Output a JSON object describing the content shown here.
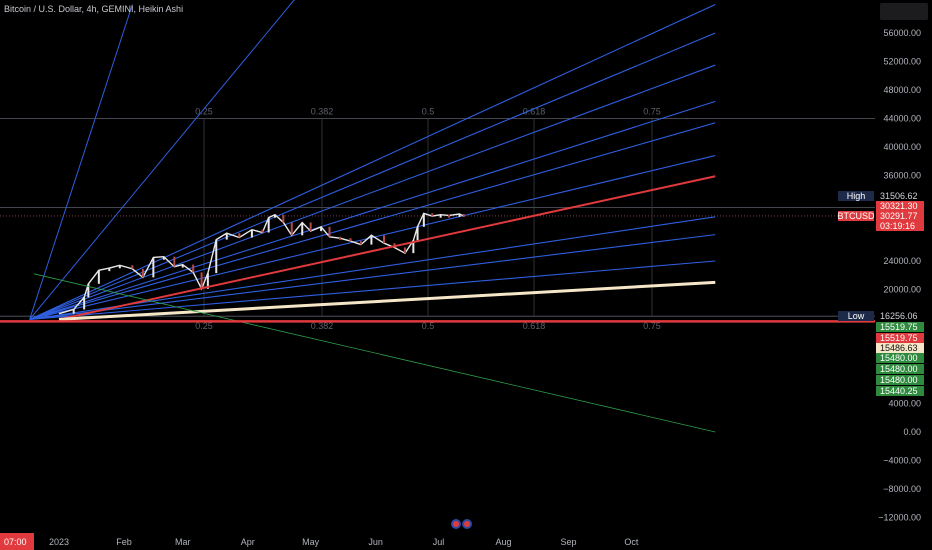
{
  "header": {
    "title": "Bitcoin / U.S. Dollar, 4h, GEMINI, Heikin Ashi"
  },
  "colors": {
    "background": "#000000",
    "fan_line": "#2f5fe0",
    "red_line": "#e03a3e",
    "cream_line": "#f5e6c8",
    "green_line": "#2e9e4a",
    "hline": "#5a5d66",
    "candle_up": "#e8e8e8",
    "candle_down": "#b84a4a",
    "tag_red": "#e03a3e",
    "tag_green": "#2e8b3e",
    "tag_navy": "#1e2a4a"
  },
  "chart_data": {
    "type": "line",
    "title": "Bitcoin / U.S. Dollar, 4h, GEMINI, Heikin Ashi",
    "ylim": [
      -14000,
      60000
    ],
    "y_ticks": [
      "56000.00",
      "52000.00",
      "48000.00",
      "44000.00",
      "40000.00",
      "36000.00",
      "24000.00",
      "20000.00",
      "4000.00",
      "0.00",
      "−4000.00",
      "−8000.00",
      "−12000.00"
    ],
    "x_ticks": [
      "2023",
      "Feb",
      "Mar",
      "Apr",
      "May",
      "Jun",
      "Jul",
      "Aug",
      "Sep",
      "Oct"
    ],
    "time_badge": "07:00",
    "fib_levels": [
      "0.25",
      "0.382",
      "0.5",
      "0.618",
      "0.75"
    ],
    "horizontal_levels": [
      44000,
      31506.62,
      30321.3,
      16256.06,
      15519.75
    ],
    "price_series": {
      "name": "BTCUSD",
      "x": [
        "2023-01-01",
        "2023-01-08",
        "2023-01-13",
        "2023-01-15",
        "2023-01-20",
        "2023-01-25",
        "2023-01-30",
        "2023-02-05",
        "2023-02-10",
        "2023-02-15",
        "2023-02-20",
        "2023-02-25",
        "2023-03-01",
        "2023-03-06",
        "2023-03-10",
        "2023-03-13",
        "2023-03-17",
        "2023-03-22",
        "2023-03-28",
        "2023-04-03",
        "2023-04-08",
        "2023-04-11",
        "2023-04-14",
        "2023-04-18",
        "2023-04-22",
        "2023-04-27",
        "2023-05-01",
        "2023-05-06",
        "2023-05-10",
        "2023-05-15",
        "2023-05-20",
        "2023-05-25",
        "2023-05-30",
        "2023-06-05",
        "2023-06-10",
        "2023-06-15",
        "2023-06-19",
        "2023-06-21",
        "2023-06-24",
        "2023-06-28",
        "2023-07-02",
        "2023-07-06",
        "2023-07-11",
        "2023-07-13"
      ],
      "y": [
        16600,
        17200,
        18900,
        20800,
        22700,
        23000,
        23400,
        22900,
        21700,
        24500,
        24600,
        23200,
        23500,
        22400,
        20100,
        22300,
        27000,
        27900,
        27300,
        28400,
        28000,
        30100,
        30500,
        29400,
        27600,
        29400,
        28200,
        28800,
        27400,
        27200,
        26800,
        26300,
        27600,
        26500,
        25900,
        25100,
        26900,
        28800,
        30700,
        30300,
        30500,
        30400,
        30600,
        30300
      ]
    },
    "fan_lines": [
      {
        "x2": "2023-04-27",
        "y2": 62000
      },
      {
        "x2": "2023-11-10",
        "y2": 60000
      },
      {
        "x2": "2023-11-10",
        "y2": 56000
      },
      {
        "x2": "2023-11-10",
        "y2": 51500
      },
      {
        "x2": "2023-11-10",
        "y2": 46400
      },
      {
        "x2": "2023-11-10",
        "y2": 43400
      },
      {
        "x2": "2023-11-10",
        "y2": 38800
      },
      {
        "x2": "2023-11-10",
        "y2": 30200
      },
      {
        "x2": "2023-11-10",
        "y2": 27700
      },
      {
        "x2": "2023-11-10",
        "y2": 24000
      }
    ],
    "red_line": {
      "x1": "2023-01-01",
      "y1": 15800,
      "x2": "2023-11-10",
      "y2": 35900
    },
    "cream_line": {
      "x1": "2023-01-01",
      "y1": 15800,
      "x2": "2023-11-10",
      "y2": 21000
    },
    "green_line": {
      "x1": "2022-12-20",
      "y1": 22200,
      "x2": "2023-11-10",
      "y2": 0
    }
  },
  "price_scale": {
    "top_box": "",
    "tags": [
      {
        "label": "High",
        "value": "31506.62",
        "kind": "label-left"
      },
      {
        "label": "",
        "value": "30321.30",
        "kind": "red"
      },
      {
        "label": "BTCUSD",
        "value": "30291.77",
        "kind": "red-main"
      },
      {
        "label": "",
        "value": "03:19:16",
        "kind": "red-sub"
      },
      {
        "label": "Low",
        "value": "16256.06",
        "kind": "label-left"
      },
      {
        "label": "",
        "value": "15519.75",
        "kind": "green"
      },
      {
        "label": "",
        "value": "15519.75",
        "kind": "red"
      },
      {
        "label": "",
        "value": "15486.63",
        "kind": "cream"
      },
      {
        "label": "",
        "value": "15480.00",
        "kind": "green"
      },
      {
        "label": "",
        "value": "15480.00",
        "kind": "green"
      },
      {
        "label": "",
        "value": "15480.00",
        "kind": "green"
      },
      {
        "label": "",
        "value": "15440.25",
        "kind": "green"
      }
    ]
  }
}
